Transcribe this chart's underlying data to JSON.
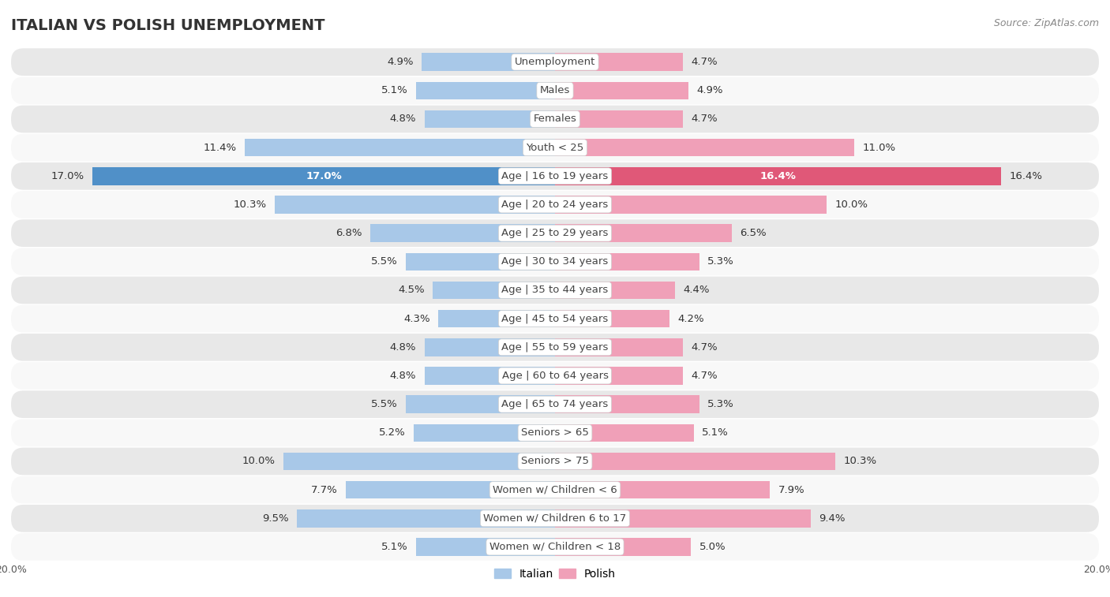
{
  "title": "ITALIAN VS POLISH UNEMPLOYMENT",
  "source": "Source: ZipAtlas.com",
  "categories": [
    "Unemployment",
    "Males",
    "Females",
    "Youth < 25",
    "Age | 16 to 19 years",
    "Age | 20 to 24 years",
    "Age | 25 to 29 years",
    "Age | 30 to 34 years",
    "Age | 35 to 44 years",
    "Age | 45 to 54 years",
    "Age | 55 to 59 years",
    "Age | 60 to 64 years",
    "Age | 65 to 74 years",
    "Seniors > 65",
    "Seniors > 75",
    "Women w/ Children < 6",
    "Women w/ Children 6 to 17",
    "Women w/ Children < 18"
  ],
  "italian": [
    4.9,
    5.1,
    4.8,
    11.4,
    17.0,
    10.3,
    6.8,
    5.5,
    4.5,
    4.3,
    4.8,
    4.8,
    5.5,
    5.2,
    10.0,
    7.7,
    9.5,
    5.1
  ],
  "polish": [
    4.7,
    4.9,
    4.7,
    11.0,
    16.4,
    10.0,
    6.5,
    5.3,
    4.4,
    4.2,
    4.7,
    4.7,
    5.3,
    5.1,
    10.3,
    7.9,
    9.4,
    5.0
  ],
  "italian_color": "#a8c8e8",
  "polish_color": "#f0a0b8",
  "italian_color_highlight": "#5090c8",
  "polish_color_highlight": "#e05878",
  "row_bg_light": "#e8e8e8",
  "row_bg_white": "#f8f8f8",
  "max_val": 20.0,
  "label_fontsize": 9.5,
  "category_fontsize": 9.5,
  "title_fontsize": 14,
  "source_fontsize": 9,
  "legend_fontsize": 10
}
